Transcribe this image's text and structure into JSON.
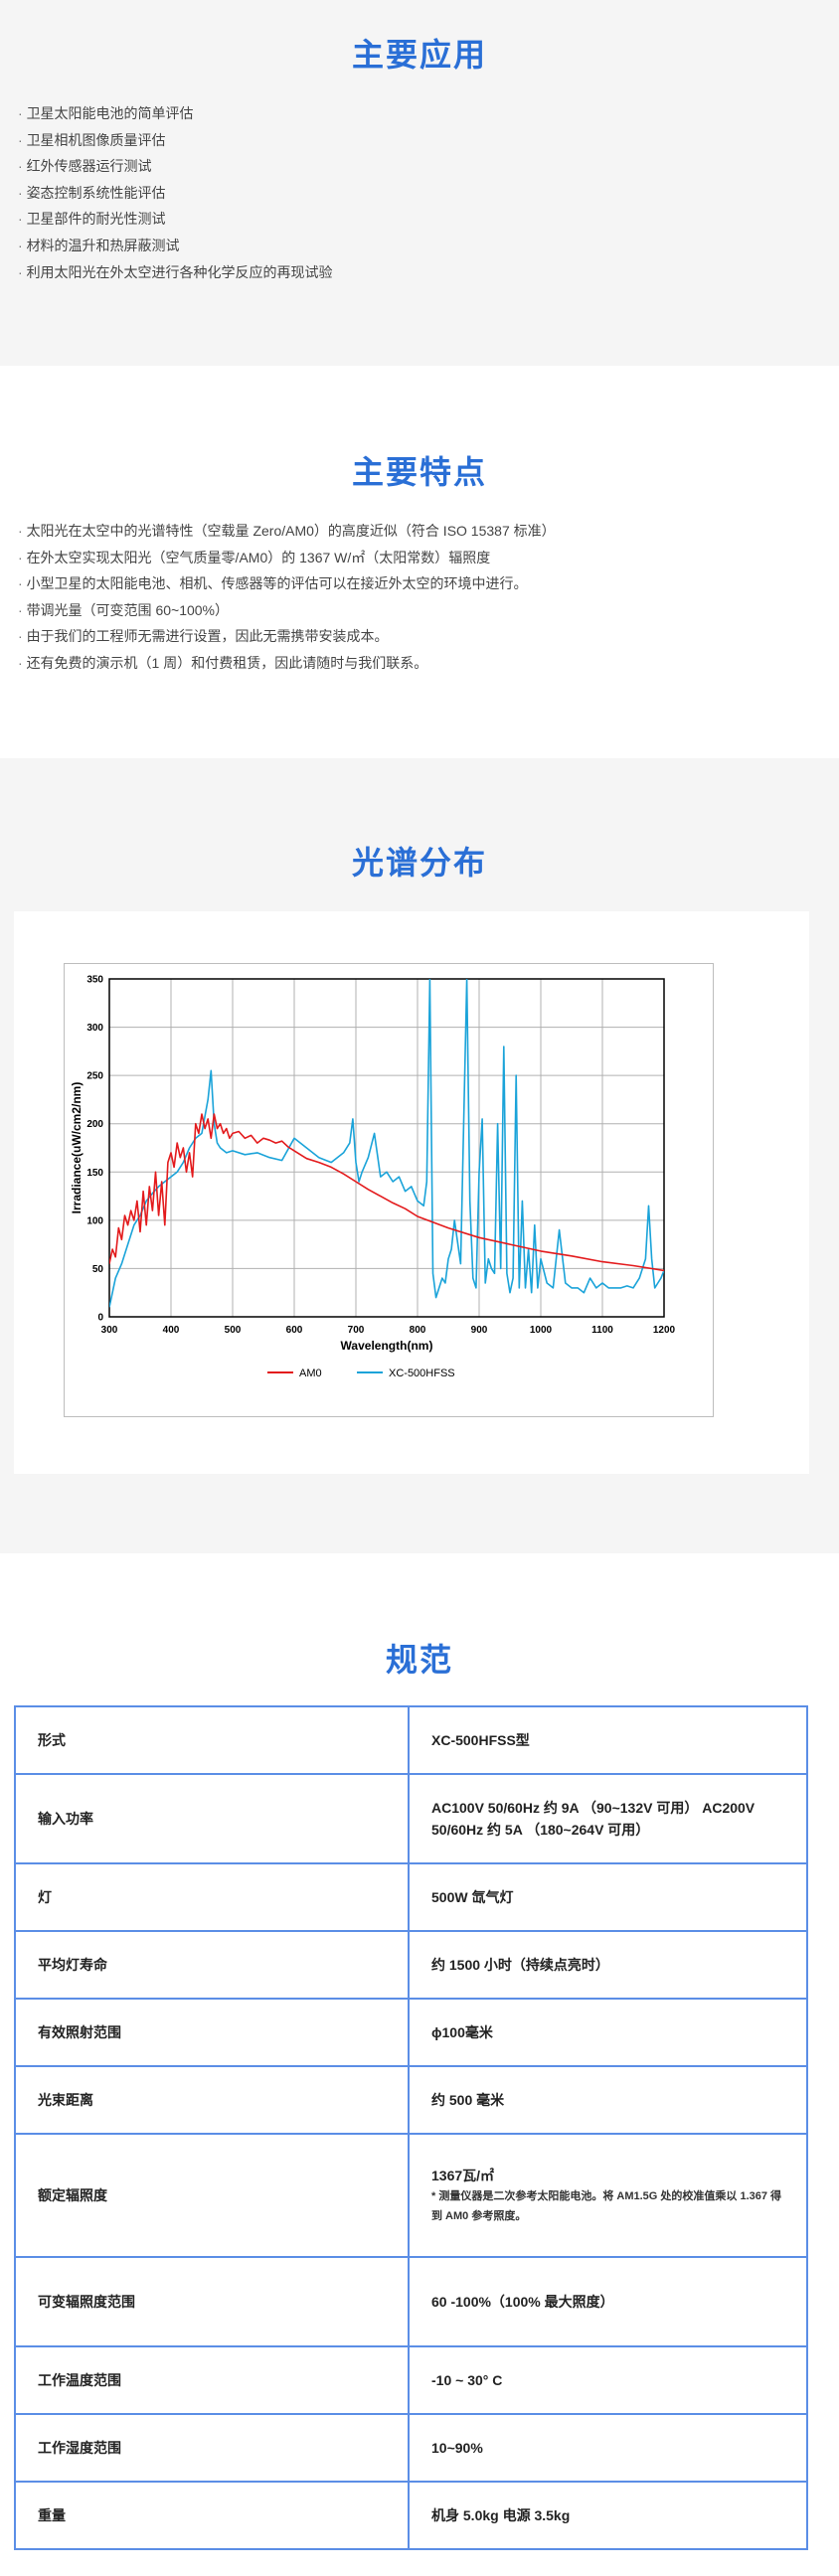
{
  "applications": {
    "title": "主要应用",
    "items": [
      "卫星太阳能电池的简单评估",
      "卫星相机图像质量评估",
      "红外传感器运行测试",
      "姿态控制系统性能评估",
      "卫星部件的耐光性测试",
      "材料的温升和热屏蔽测试",
      "利用太阳光在外太空进行各种化学反应的再现试验"
    ]
  },
  "features": {
    "title": "主要特点",
    "items": [
      "太阳光在太空中的光谱特性（空载量 Zero/AM0）的高度近似（符合 ISO 15387 标准）",
      "在外太空实现太阳光（空气质量零/AM0）的 1367 W/㎡（太阳常数）辐照度",
      "小型卫星的太阳能电池、相机、传感器等的评估可以在接近外太空的环境中进行。",
      "带调光量（可变范围 60~100%）",
      "由于我们的工程师无需进行设置，因此无需携带安装成本。",
      "还有免费的演示机（1 周）和付费租赁，因此请随时与我们联系。"
    ]
  },
  "spectrum": {
    "title": "光谱分布"
  },
  "chart_data": {
    "type": "line",
    "title": "",
    "xlabel": "Wavelength(nm)",
    "ylabel": "Irradiance(uW/cm2/nm)",
    "xlim": [
      300,
      1200
    ],
    "ylim": [
      0,
      350
    ],
    "xticks": [
      300,
      400,
      500,
      600,
      700,
      800,
      900,
      1000,
      1100,
      1200
    ],
    "yticks": [
      0,
      50,
      100,
      150,
      200,
      250,
      300,
      350
    ],
    "grid": true,
    "legend_position": "bottom-center",
    "series": [
      {
        "name": "AM0",
        "color": "#e31a1c",
        "x": [
          300,
          305,
          310,
          315,
          320,
          325,
          330,
          335,
          340,
          345,
          350,
          355,
          360,
          365,
          370,
          375,
          380,
          385,
          390,
          395,
          400,
          405,
          410,
          415,
          420,
          425,
          430,
          435,
          440,
          445,
          450,
          455,
          460,
          465,
          470,
          475,
          480,
          485,
          490,
          495,
          500,
          510,
          520,
          530,
          540,
          550,
          560,
          570,
          580,
          590,
          600,
          620,
          640,
          660,
          680,
          700,
          720,
          740,
          760,
          780,
          800,
          850,
          900,
          950,
          1000,
          1050,
          1100,
          1150,
          1200
        ],
        "y": [
          55,
          70,
          62,
          92,
          80,
          105,
          95,
          110,
          100,
          120,
          88,
          130,
          95,
          135,
          110,
          150,
          105,
          140,
          95,
          160,
          170,
          155,
          180,
          165,
          175,
          150,
          170,
          145,
          200,
          190,
          210,
          195,
          205,
          185,
          210,
          195,
          200,
          190,
          195,
          185,
          190,
          192,
          185,
          188,
          180,
          185,
          183,
          180,
          182,
          176,
          172,
          164,
          160,
          155,
          148,
          140,
          132,
          125,
          118,
          112,
          104,
          92,
          82,
          75,
          68,
          63,
          57,
          53,
          48
        ]
      },
      {
        "name": "XC-500HFSS",
        "color": "#1aa3d9",
        "x": [
          300,
          310,
          320,
          330,
          340,
          350,
          360,
          370,
          380,
          390,
          400,
          410,
          420,
          430,
          440,
          450,
          460,
          465,
          470,
          475,
          480,
          490,
          500,
          520,
          540,
          560,
          580,
          600,
          620,
          640,
          660,
          680,
          690,
          695,
          700,
          705,
          710,
          720,
          730,
          740,
          750,
          760,
          770,
          780,
          790,
          800,
          810,
          815,
          820,
          825,
          830,
          835,
          840,
          845,
          850,
          855,
          860,
          870,
          880,
          885,
          890,
          895,
          900,
          905,
          910,
          915,
          920,
          925,
          930,
          935,
          940,
          945,
          950,
          955,
          960,
          965,
          970,
          975,
          980,
          985,
          990,
          995,
          1000,
          1010,
          1020,
          1030,
          1040,
          1050,
          1060,
          1070,
          1080,
          1090,
          1100,
          1110,
          1120,
          1130,
          1140,
          1150,
          1160,
          1170,
          1175,
          1180,
          1185,
          1190,
          1195,
          1200
        ],
        "y": [
          10,
          40,
          55,
          75,
          95,
          105,
          120,
          128,
          135,
          140,
          145,
          150,
          160,
          175,
          185,
          190,
          225,
          255,
          200,
          180,
          175,
          170,
          172,
          168,
          170,
          165,
          162,
          185,
          175,
          165,
          160,
          170,
          180,
          205,
          160,
          140,
          150,
          165,
          190,
          145,
          150,
          140,
          145,
          130,
          135,
          120,
          115,
          140,
          350,
          45,
          20,
          30,
          40,
          35,
          60,
          70,
          100,
          55,
          350,
          120,
          40,
          30,
          150,
          205,
          35,
          60,
          50,
          45,
          200,
          50,
          280,
          45,
          25,
          40,
          250,
          30,
          120,
          30,
          70,
          25,
          95,
          30,
          60,
          35,
          30,
          90,
          35,
          30,
          30,
          25,
          40,
          30,
          35,
          30,
          30,
          30,
          32,
          30,
          40,
          60,
          115,
          60,
          30,
          35,
          40,
          48
        ]
      }
    ]
  },
  "specs": {
    "title": "规范",
    "rows": [
      {
        "key": "形式",
        "value": "XC-500HFSS型",
        "note": ""
      },
      {
        "key": "输入功率",
        "value": "AC100V 50/60Hz 约 9A （90~132V 可用） AC200V 50/60Hz 约 5A （180~264V 可用）",
        "note": ""
      },
      {
        "key": "灯",
        "value": "500W 氙气灯",
        "note": ""
      },
      {
        "key": "平均灯寿命",
        "value": "约 1500 小时（持续点亮时）",
        "note": ""
      },
      {
        "key": "有效照射范围",
        "value": "ϕ100毫米",
        "note": ""
      },
      {
        "key": "光束距离",
        "value": "约 500 毫米",
        "note": ""
      },
      {
        "key": "额定辐照度",
        "value": "1367瓦/㎡",
        "note": "* 测量仪器是二次参考太阳能电池。将 AM1.5G 处的校准值乘以 1.367 得到 AM0 参考照度。"
      },
      {
        "key": "可变辐照度范围",
        "value": "60 -100%（100% 最大照度）",
        "note": ""
      },
      {
        "key": "工作温度范围",
        "value": "-10 ~ 30° C",
        "note": ""
      },
      {
        "key": "工作湿度范围",
        "value": "10~90%",
        "note": ""
      },
      {
        "key": "重量",
        "value": "机身 5.0kg 电源 3.5kg",
        "note": ""
      }
    ]
  }
}
